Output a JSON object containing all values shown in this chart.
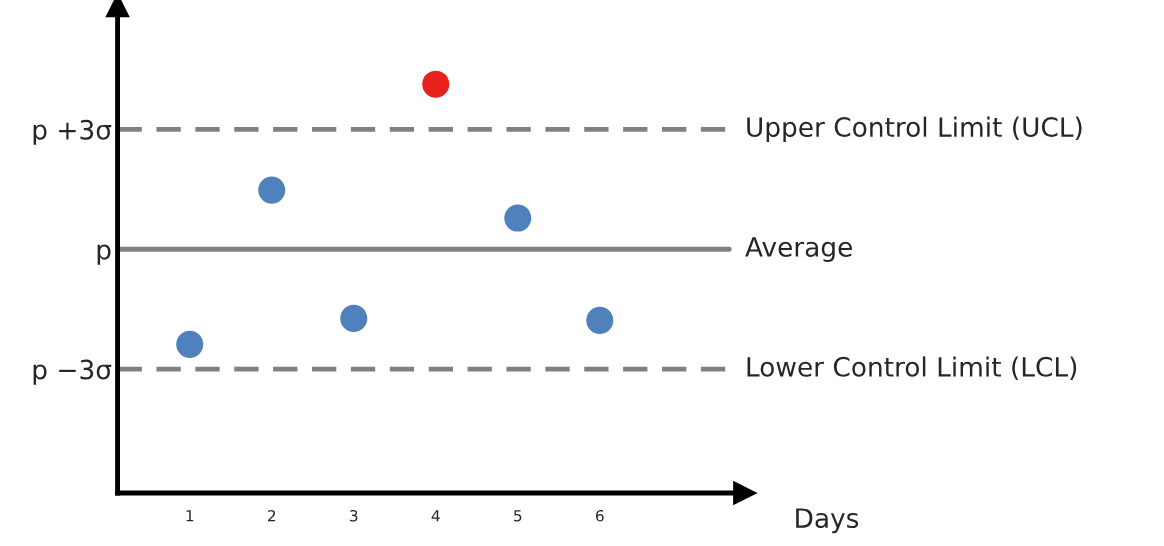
{
  "chart_data": {
    "type": "scatter",
    "xlabel": "Days",
    "x": [
      1,
      2,
      3,
      4,
      5,
      6
    ],
    "values": [
      -2.38,
      1.48,
      -1.73,
      4.13,
      0.78,
      -1.78
    ],
    "colors": [
      "#4f81bd",
      "#4f81bd",
      "#4f81bd",
      "#e8211c",
      "#4f81bd",
      "#4f81bd"
    ],
    "marker": "circle",
    "xlim": [
      0.12,
      7.77
    ],
    "xticks": [
      1,
      2,
      3,
      4,
      5,
      6
    ],
    "ylim": [
      -6.1,
      6.1
    ],
    "yticks": [
      {
        "value": -3,
        "label": "p −3σ"
      },
      {
        "value": 0,
        "label": "p"
      },
      {
        "value": 3,
        "label": "p +3σ"
      }
    ],
    "ref_lines": [
      {
        "axis": "y",
        "value": 3,
        "label": "Upper Control Limit (UCL)",
        "color": "#808080",
        "line_style": "dashed"
      },
      {
        "axis": "y",
        "value": 0,
        "label": "Average",
        "color": "#808080",
        "line_style": "solid"
      },
      {
        "axis": "y",
        "value": -3,
        "label": "Lower Control Limit (LCL)",
        "color": "#808080",
        "line_style": "dashed"
      }
    ],
    "grid": false,
    "legend": false
  }
}
